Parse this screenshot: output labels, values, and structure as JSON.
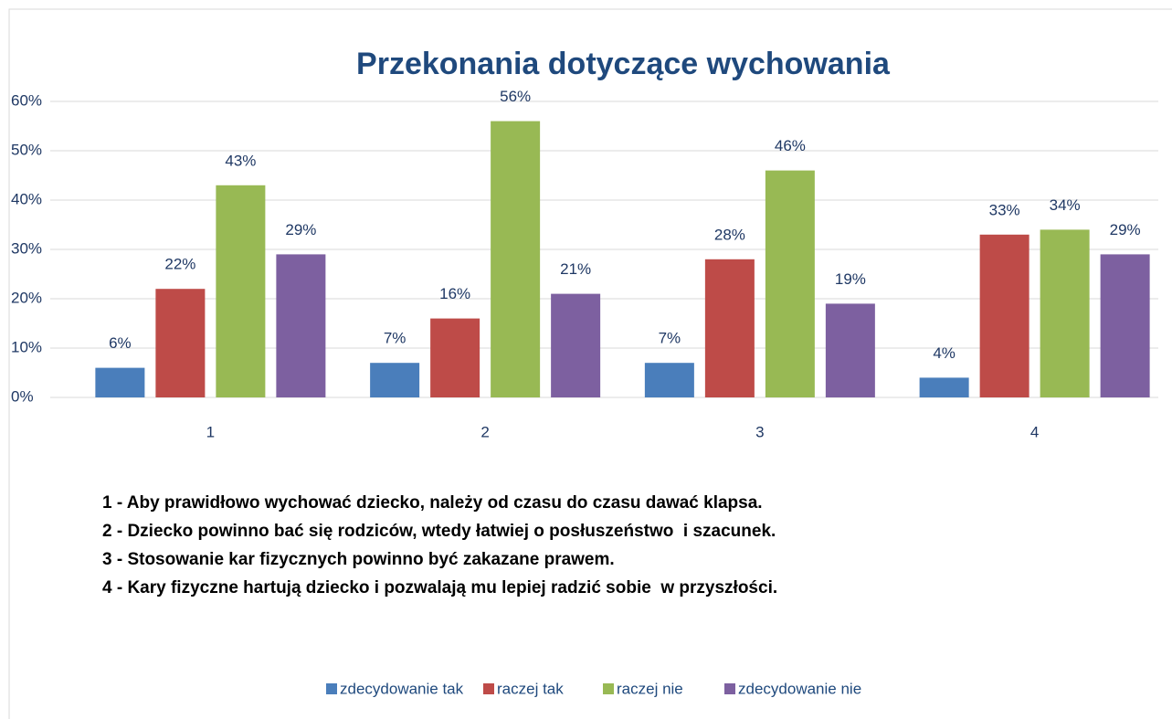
{
  "chart_data": {
    "type": "bar",
    "title": "Przekonania dotyczące wychowania",
    "categories": [
      "1",
      "2",
      "3",
      "4"
    ],
    "series": [
      {
        "name": "zdecydowanie tak",
        "color": "#4a7ebb",
        "values": [
          6,
          7,
          7,
          4
        ],
        "value_labels": [
          "6%",
          "7%",
          "7%",
          "4%"
        ]
      },
      {
        "name": "raczej tak",
        "color": "#be4b48",
        "values": [
          22,
          16,
          28,
          33
        ],
        "value_labels": [
          "22%",
          "16%",
          "28%",
          "33%"
        ]
      },
      {
        "name": "raczej nie",
        "color": "#98b954",
        "values": [
          43,
          56,
          46,
          34
        ],
        "value_labels": [
          "43%",
          "56%",
          "46%",
          "34%"
        ]
      },
      {
        "name": "zdecydowanie nie",
        "color": "#7d60a0",
        "values": [
          29,
          21,
          19,
          29
        ],
        "value_labels": [
          "29%",
          "21%",
          "19%",
          "29%"
        ]
      }
    ],
    "ylim": [
      0,
      60
    ],
    "yticks": [
      {
        "value": 0,
        "label": "0%"
      },
      {
        "value": 10,
        "label": "10%"
      },
      {
        "value": 20,
        "label": "20%"
      },
      {
        "value": 30,
        "label": "30%"
      },
      {
        "value": 40,
        "label": "40%"
      },
      {
        "value": 50,
        "label": "50%"
      },
      {
        "value": 60,
        "label": "60%"
      }
    ],
    "grid": true,
    "legend": "bottom",
    "notes": [
      "1 - Aby prawidłowo wychować dziecko, należy od czasu do czasu dawać klapsa.",
      "2 - Dziecko powinno bać się rodziców, wtedy łatwiej o posłuszeństwo  i szacunek.",
      "3 - Stosowanie kar fizycznych powinno być zakazane prawem.",
      "4 - Kary fizyczne hartują dziecko i pozwalają mu lepiej radzić sobie  w przyszłości."
    ]
  }
}
